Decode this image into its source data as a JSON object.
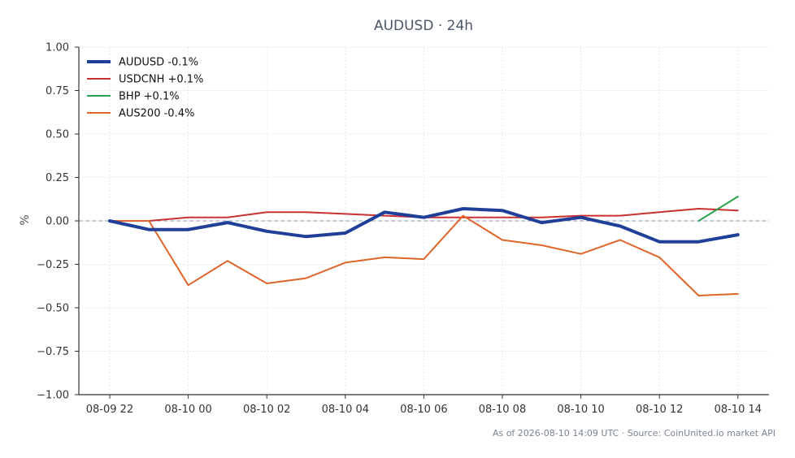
{
  "chart_data": {
    "type": "line",
    "title": "AUDUSD · 24h",
    "xlabel": "",
    "ylabel": "%",
    "ylim": [
      -1.0,
      1.0
    ],
    "yticks": [
      1.0,
      0.75,
      0.5,
      0.25,
      0.0,
      -0.25,
      -0.5,
      -0.75,
      -1.0
    ],
    "ytick_labels": [
      "1.00",
      "0.75",
      "0.50",
      "0.25",
      "0.00",
      "−0.25",
      "−0.50",
      "−0.75",
      "−1.00"
    ],
    "x": [
      "08-09 22",
      "08-09 23",
      "08-10 00",
      "08-10 01",
      "08-10 02",
      "08-10 03",
      "08-10 04",
      "08-10 05",
      "08-10 06",
      "08-10 07",
      "08-10 08",
      "08-10 09",
      "08-10 10",
      "08-10 11",
      "08-10 12",
      "08-10 13",
      "08-10 14"
    ],
    "xtick_labels": [
      "08-09 22",
      "08-10 00",
      "08-10 02",
      "08-10 04",
      "08-10 06",
      "08-10 08",
      "08-10 10",
      "08-10 12",
      "08-10 14"
    ],
    "grid": true,
    "zero_line": true,
    "legend_position": "top-left",
    "series": [
      {
        "name": "AUDUSD -0.1%",
        "color": "#1f3f99",
        "width": 4,
        "values": [
          0.0,
          -0.05,
          -0.05,
          -0.01,
          -0.06,
          -0.09,
          -0.07,
          0.05,
          0.02,
          0.07,
          0.06,
          -0.01,
          0.02,
          -0.03,
          -0.12,
          -0.12,
          -0.08
        ]
      },
      {
        "name": "USDCNH +0.1%",
        "color": "#c8312f",
        "width": 2,
        "values": [
          0.0,
          0.0,
          0.02,
          0.02,
          0.05,
          0.05,
          0.04,
          0.03,
          0.02,
          0.02,
          0.02,
          0.02,
          0.03,
          0.03,
          0.05,
          0.07,
          0.06
        ]
      },
      {
        "name": "BHP +0.1%",
        "color": "#2ca24c",
        "width": 2,
        "values": [
          null,
          null,
          null,
          null,
          null,
          null,
          null,
          null,
          null,
          null,
          null,
          null,
          null,
          null,
          null,
          0.0,
          0.14
        ]
      },
      {
        "name": "AUS200 -0.4%",
        "color": "#e0652a",
        "width": 2,
        "values": [
          0.0,
          0.0,
          -0.37,
          -0.23,
          -0.36,
          -0.33,
          -0.24,
          -0.21,
          -0.22,
          0.03,
          -0.11,
          -0.14,
          -0.19,
          -0.11,
          -0.21,
          -0.43,
          -0.42
        ]
      }
    ],
    "footer": "As of 2026-08-10 14:09 UTC · Source: CoinUnited.io market API"
  }
}
